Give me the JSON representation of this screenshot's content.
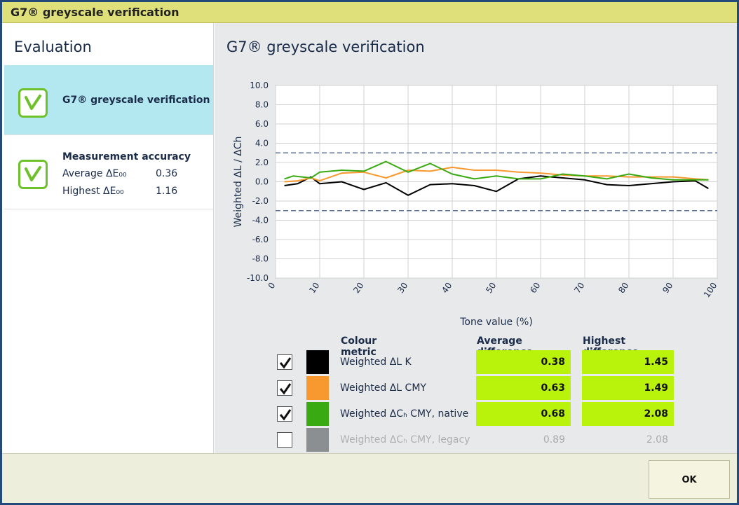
{
  "window": {
    "title": "G7® greyscale verification"
  },
  "sidebar": {
    "title": "Evaluation",
    "items": [
      {
        "label": "G7® greyscale verification",
        "status": "pass",
        "selected": true
      },
      {
        "label": "Measurement accuracy",
        "status": "pass",
        "selected": false,
        "average_label": "Average ΔE₀₀",
        "average_value": "0.36",
        "highest_label": "Highest ΔE₀₀",
        "highest_value": "1.16"
      }
    ]
  },
  "main": {
    "title": "G7® greyscale verification"
  },
  "chart_data": {
    "type": "line",
    "xlabel": "Tone value (%)",
    "ylabel": "Weighted ΔL / ΔCh",
    "xlim": [
      0,
      100
    ],
    "ylim": [
      -10,
      10
    ],
    "x_ticks": [
      "0",
      "10",
      "20",
      "30",
      "40",
      "50",
      "60",
      "70",
      "80",
      "90",
      "100"
    ],
    "y_ticks": [
      "10.0",
      "8.0",
      "6.0",
      "4.0",
      "2.0",
      "0.0",
      "-2.0",
      "-4.0",
      "-6.0",
      "-8.0",
      "-10.0"
    ],
    "grid": true,
    "thresholds": [
      3.0,
      -3.0
    ],
    "series": [
      {
        "name": "Weighted ΔL K",
        "color": "#000000",
        "x": [
          2,
          5,
          8,
          10,
          15,
          20,
          25,
          30,
          35,
          40,
          45,
          50,
          55,
          60,
          65,
          70,
          75,
          80,
          85,
          90,
          95,
          98
        ],
        "y": [
          -0.4,
          -0.2,
          0.5,
          -0.2,
          0.0,
          -0.8,
          -0.1,
          -1.4,
          -0.3,
          -0.2,
          -0.4,
          -1.0,
          0.3,
          0.6,
          0.4,
          0.2,
          -0.3,
          -0.4,
          -0.2,
          0.0,
          0.1,
          -0.7
        ]
      },
      {
        "name": "Weighted ΔL CMY",
        "color": "#f7992e",
        "x": [
          2,
          5,
          8,
          10,
          15,
          20,
          25,
          30,
          35,
          40,
          45,
          50,
          55,
          60,
          65,
          70,
          75,
          80,
          85,
          90,
          95,
          98
        ],
        "y": [
          0.0,
          0.1,
          0.4,
          0.1,
          0.9,
          1.0,
          0.4,
          1.2,
          1.1,
          1.5,
          1.2,
          1.2,
          1.0,
          0.9,
          0.7,
          0.6,
          0.6,
          0.5,
          0.5,
          0.5,
          0.3,
          0.2
        ]
      },
      {
        "name": "Weighted ΔCh CMY, native",
        "color": "#3aaa12",
        "x": [
          2,
          4,
          6,
          8,
          10,
          15,
          20,
          25,
          30,
          35,
          40,
          45,
          50,
          55,
          60,
          65,
          70,
          75,
          80,
          85,
          90,
          95,
          98
        ],
        "y": [
          0.3,
          0.6,
          0.5,
          0.4,
          1.0,
          1.2,
          1.1,
          2.1,
          1.0,
          1.9,
          0.8,
          0.3,
          0.6,
          0.3,
          0.3,
          0.8,
          0.6,
          0.3,
          0.8,
          0.4,
          0.2,
          0.2,
          0.2
        ]
      }
    ]
  },
  "metrics": {
    "headers": {
      "name": "Colour metric",
      "avg": "Average difference",
      "max": "Highest difference"
    },
    "rows": [
      {
        "checked": true,
        "color": "#000000",
        "name": "Weighted ΔL K",
        "avg": "0.38",
        "max": "1.45"
      },
      {
        "checked": true,
        "color": "#f7992e",
        "name": "Weighted ΔL CMY",
        "avg": "0.63",
        "max": "1.49"
      },
      {
        "checked": true,
        "color": "#3aaa12",
        "name": "Weighted ΔCₕ CMY, native",
        "avg": "0.68",
        "max": "2.08"
      },
      {
        "checked": false,
        "color": "#8b8f92",
        "name": "Weighted ΔCₕ CMY, legacy",
        "avg": "0.89",
        "max": "2.08"
      }
    ]
  },
  "footer": {
    "ok_label": "OK"
  }
}
